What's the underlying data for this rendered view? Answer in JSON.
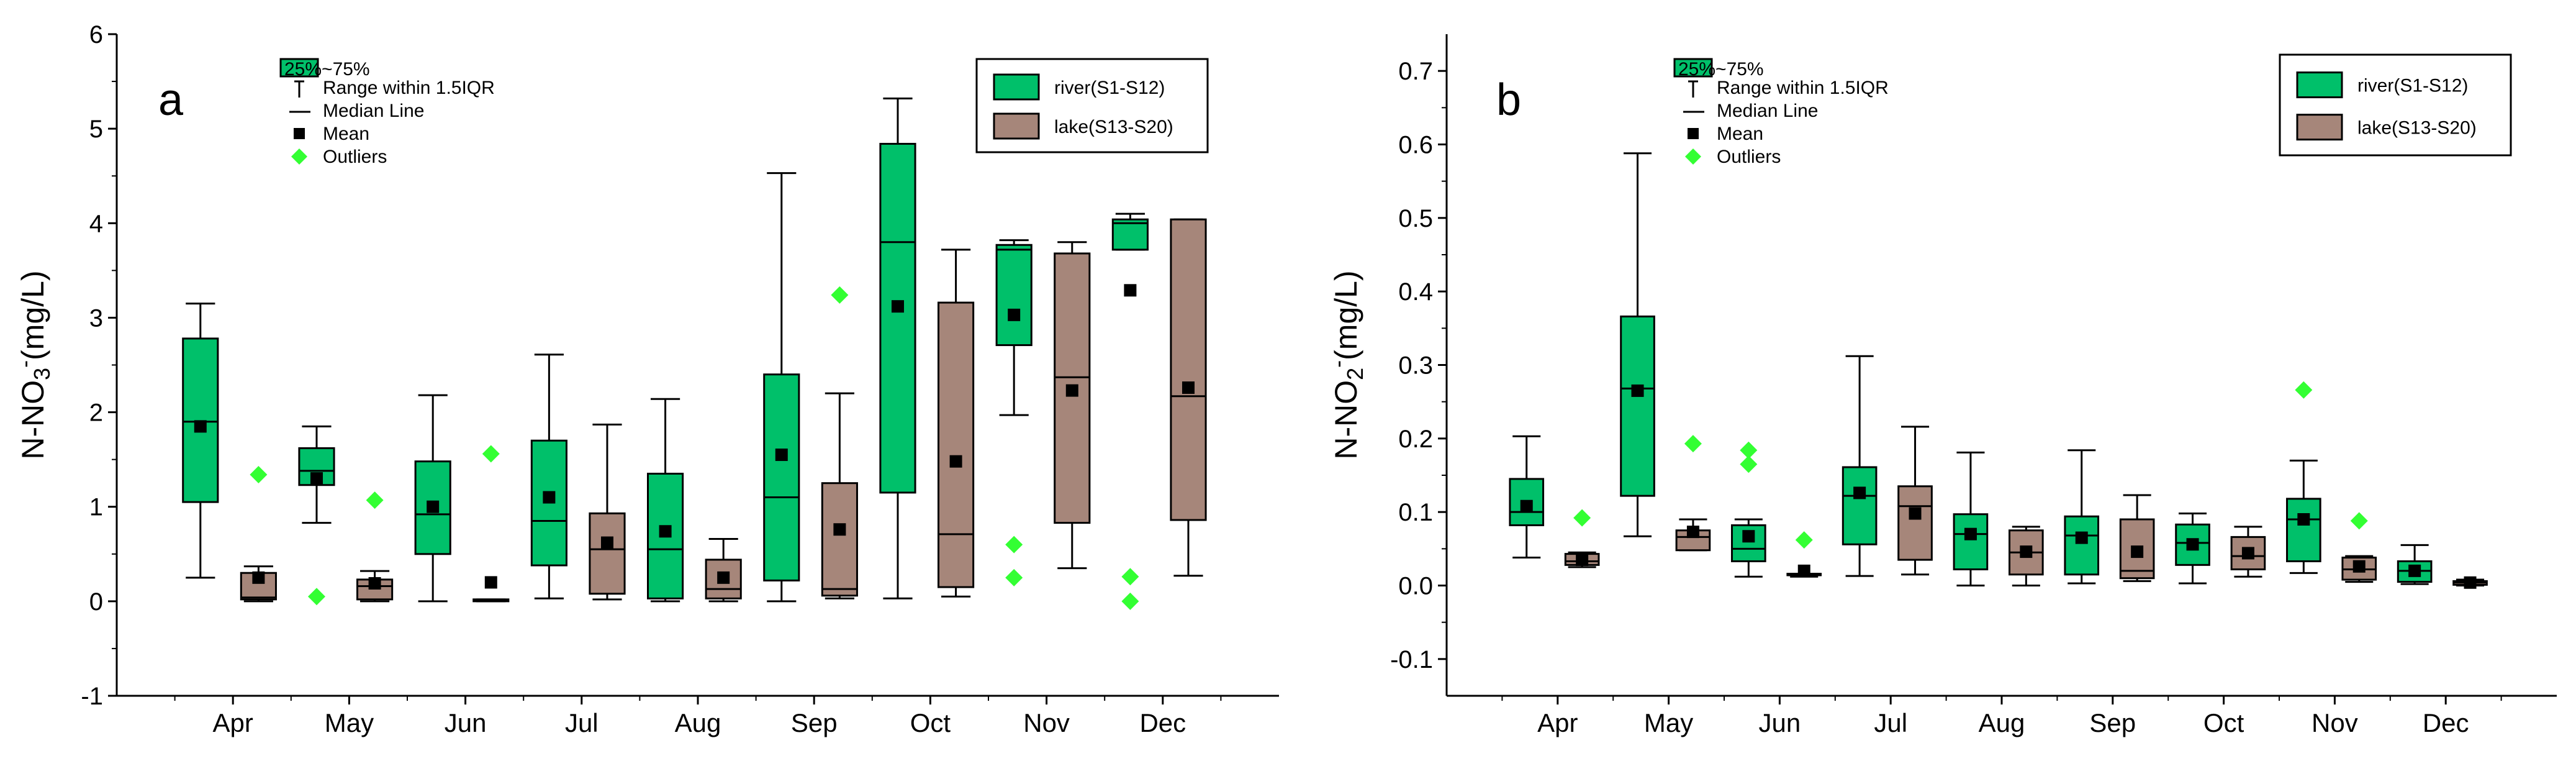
{
  "colors": {
    "river": "#00c06a",
    "lake": "#a6867a",
    "outlier": "#33ff33",
    "mean": "#000000"
  },
  "stats_legend": {
    "box": "25%~75%",
    "range": "Range within 1.5IQR",
    "median": "Median Line",
    "mean": "Mean",
    "outliers": "Outliers"
  },
  "series_legend": {
    "river": "river(S1-S12)",
    "lake": "lake(S13-S20)"
  },
  "chart_data": [
    {
      "type": "box",
      "panel_label": "a",
      "ylabel_prefix": "N-NO",
      "ylabel_sub": "3",
      "ylabel_sup": "-",
      "ylabel_suffix": "(mg/L)",
      "ylim": [
        -1,
        6
      ],
      "yticks": [
        -1,
        0,
        1,
        2,
        3,
        4,
        5,
        6
      ],
      "months": [
        "Apr",
        "May",
        "Jun",
        "Jul",
        "Aug",
        "Sep",
        "Oct",
        "Nov",
        "Dec"
      ],
      "boxes": [
        {
          "series": "river",
          "month": "Apr",
          "pos": 0.72,
          "whisker_low": 0.25,
          "q1": 1.05,
          "median": 1.9,
          "q3": 2.78,
          "whisker_high": 3.15,
          "mean": 1.85,
          "outliers": []
        },
        {
          "series": "lake",
          "month": "Apr",
          "pos": 1.22,
          "whisker_low": 0.0,
          "q1": 0.02,
          "median": 0.04,
          "q3": 0.3,
          "whisker_high": 0.37,
          "mean": 0.25,
          "outliers": [
            1.34
          ]
        },
        {
          "series": "river",
          "month": "May",
          "pos": 1.72,
          "whisker_low": 0.83,
          "q1": 1.23,
          "median": 1.38,
          "q3": 1.62,
          "whisker_high": 1.85,
          "mean": 1.3,
          "outliers": [
            0.05
          ]
        },
        {
          "series": "lake",
          "month": "May",
          "pos": 2.22,
          "whisker_low": 0.0,
          "q1": 0.02,
          "median": 0.16,
          "q3": 0.23,
          "whisker_high": 0.32,
          "mean": 0.19,
          "outliers": [
            1.07
          ]
        },
        {
          "series": "river",
          "month": "Jun",
          "pos": 2.72,
          "whisker_low": 0.0,
          "q1": 0.5,
          "median": 0.92,
          "q3": 1.48,
          "whisker_high": 2.18,
          "mean": 1.0,
          "outliers": []
        },
        {
          "series": "lake",
          "month": "Jun",
          "pos": 3.22,
          "whisker_low": 0.0,
          "q1": 0.0,
          "median": 0.01,
          "q3": 0.02,
          "whisker_high": 0.02,
          "mean": 0.2,
          "outliers": [
            1.56
          ]
        },
        {
          "series": "river",
          "month": "Jul",
          "pos": 3.72,
          "whisker_low": 0.03,
          "q1": 0.38,
          "median": 0.85,
          "q3": 1.7,
          "whisker_high": 2.61,
          "mean": 1.1,
          "outliers": []
        },
        {
          "series": "lake",
          "month": "Jul",
          "pos": 4.22,
          "whisker_low": 0.02,
          "q1": 0.08,
          "median": 0.55,
          "q3": 0.93,
          "whisker_high": 1.87,
          "mean": 0.62,
          "outliers": []
        },
        {
          "series": "river",
          "month": "Aug",
          "pos": 4.72,
          "whisker_low": 0.0,
          "q1": 0.03,
          "median": 0.55,
          "q3": 1.35,
          "whisker_high": 2.14,
          "mean": 0.74,
          "outliers": []
        },
        {
          "series": "lake",
          "month": "Aug",
          "pos": 5.22,
          "whisker_low": 0.0,
          "q1": 0.03,
          "median": 0.13,
          "q3": 0.44,
          "whisker_high": 0.66,
          "mean": 0.25,
          "outliers": []
        },
        {
          "series": "river",
          "month": "Sep",
          "pos": 5.72,
          "whisker_low": 0.0,
          "q1": 0.22,
          "median": 1.1,
          "q3": 2.4,
          "whisker_high": 4.53,
          "mean": 1.55,
          "outliers": []
        },
        {
          "series": "lake",
          "month": "Sep",
          "pos": 6.22,
          "whisker_low": 0.03,
          "q1": 0.06,
          "median": 0.13,
          "q3": 1.25,
          "whisker_high": 2.2,
          "mean": 0.76,
          "outliers": [
            3.24
          ]
        },
        {
          "series": "river",
          "month": "Oct",
          "pos": 6.72,
          "whisker_low": 0.03,
          "q1": 1.15,
          "median": 3.8,
          "q3": 4.84,
          "whisker_high": 5.32,
          "mean": 3.12,
          "outliers": []
        },
        {
          "series": "lake",
          "month": "Oct",
          "pos": 7.22,
          "whisker_low": 0.05,
          "q1": 0.15,
          "median": 0.71,
          "q3": 3.16,
          "whisker_high": 3.72,
          "mean": 1.48,
          "outliers": []
        },
        {
          "series": "river",
          "month": "Nov",
          "pos": 7.72,
          "whisker_low": 1.97,
          "q1": 2.71,
          "median": 3.72,
          "q3": 3.77,
          "whisker_high": 3.82,
          "mean": 3.03,
          "outliers": [
            0.6,
            0.25
          ]
        },
        {
          "series": "lake",
          "month": "Nov",
          "pos": 8.22,
          "whisker_low": 0.35,
          "q1": 0.83,
          "median": 2.37,
          "q3": 3.68,
          "whisker_high": 3.8,
          "mean": 2.23,
          "outliers": []
        },
        {
          "series": "river",
          "month": "Dec",
          "pos": 8.72,
          "whisker_low": 3.72,
          "q1": 3.72,
          "median": 4.0,
          "q3": 4.04,
          "whisker_high": 4.1,
          "mean": 3.29,
          "outliers": [
            0.26,
            0.0
          ]
        },
        {
          "series": "lake",
          "month": "Dec",
          "pos": 9.22,
          "whisker_low": 0.27,
          "q1": 0.86,
          "median": 2.17,
          "q3": 4.04,
          "whisker_high": 4.04,
          "mean": 2.26,
          "outliers": []
        }
      ]
    },
    {
      "type": "box",
      "panel_label": "b",
      "ylabel_prefix": "N-NO",
      "ylabel_sub": "2",
      "ylabel_sup": "-",
      "ylabel_suffix": "(mg/L)",
      "ylim": [
        -0.15,
        0.75
      ],
      "yticks": [
        -0.1,
        0.0,
        0.1,
        0.2,
        0.3,
        0.4,
        0.5,
        0.6,
        0.7
      ],
      "months": [
        "Apr",
        "May",
        "Jun",
        "Jul",
        "Aug",
        "Sep",
        "Oct",
        "Nov",
        "Dec"
      ],
      "boxes": [
        {
          "series": "river",
          "month": "Apr",
          "pos": 0.72,
          "whisker_low": 0.038,
          "q1": 0.082,
          "median": 0.1,
          "q3": 0.145,
          "whisker_high": 0.203,
          "mean": 0.108,
          "outliers": []
        },
        {
          "series": "lake",
          "month": "Apr",
          "pos": 1.22,
          "whisker_low": 0.025,
          "q1": 0.028,
          "median": 0.033,
          "q3": 0.043,
          "whisker_high": 0.045,
          "mean": 0.035,
          "outliers": [
            0.092
          ]
        },
        {
          "series": "river",
          "month": "May",
          "pos": 1.72,
          "whisker_low": 0.067,
          "q1": 0.122,
          "median": 0.268,
          "q3": 0.366,
          "whisker_high": 0.588,
          "mean": 0.265,
          "outliers": []
        },
        {
          "series": "lake",
          "month": "May",
          "pos": 2.22,
          "whisker_low": 0.048,
          "q1": 0.048,
          "median": 0.066,
          "q3": 0.075,
          "whisker_high": 0.09,
          "mean": 0.073,
          "outliers": [
            0.193
          ]
        },
        {
          "series": "river",
          "month": "Jun",
          "pos": 2.72,
          "whisker_low": 0.012,
          "q1": 0.033,
          "median": 0.05,
          "q3": 0.082,
          "whisker_high": 0.09,
          "mean": 0.067,
          "outliers": [
            0.184,
            0.165
          ]
        },
        {
          "series": "lake",
          "month": "Jun",
          "pos": 3.22,
          "whisker_low": 0.012,
          "q1": 0.014,
          "median": 0.014,
          "q3": 0.016,
          "whisker_high": 0.016,
          "mean": 0.02,
          "outliers": [
            0.062
          ]
        },
        {
          "series": "river",
          "month": "Jul",
          "pos": 3.72,
          "whisker_low": 0.013,
          "q1": 0.056,
          "median": 0.122,
          "q3": 0.161,
          "whisker_high": 0.312,
          "mean": 0.126,
          "outliers": []
        },
        {
          "series": "lake",
          "month": "Jul",
          "pos": 4.22,
          "whisker_low": 0.015,
          "q1": 0.035,
          "median": 0.108,
          "q3": 0.135,
          "whisker_high": 0.216,
          "mean": 0.098,
          "outliers": []
        },
        {
          "series": "river",
          "month": "Aug",
          "pos": 4.72,
          "whisker_low": 0.0,
          "q1": 0.022,
          "median": 0.07,
          "q3": 0.097,
          "whisker_high": 0.181,
          "mean": 0.07,
          "outliers": []
        },
        {
          "series": "lake",
          "month": "Aug",
          "pos": 5.22,
          "whisker_low": 0.0,
          "q1": 0.015,
          "median": 0.045,
          "q3": 0.075,
          "whisker_high": 0.08,
          "mean": 0.046,
          "outliers": []
        },
        {
          "series": "river",
          "month": "Sep",
          "pos": 5.72,
          "whisker_low": 0.003,
          "q1": 0.015,
          "median": 0.068,
          "q3": 0.094,
          "whisker_high": 0.184,
          "mean": 0.065,
          "outliers": []
        },
        {
          "series": "lake",
          "month": "Sep",
          "pos": 6.22,
          "whisker_low": 0.006,
          "q1": 0.01,
          "median": 0.02,
          "q3": 0.09,
          "whisker_high": 0.123,
          "mean": 0.046,
          "outliers": []
        },
        {
          "series": "river",
          "month": "Oct",
          "pos": 6.72,
          "whisker_low": 0.003,
          "q1": 0.028,
          "median": 0.058,
          "q3": 0.083,
          "whisker_high": 0.098,
          "mean": 0.056,
          "outliers": []
        },
        {
          "series": "lake",
          "month": "Oct",
          "pos": 7.22,
          "whisker_low": 0.012,
          "q1": 0.022,
          "median": 0.04,
          "q3": 0.066,
          "whisker_high": 0.08,
          "mean": 0.044,
          "outliers": []
        },
        {
          "series": "river",
          "month": "Nov",
          "pos": 7.72,
          "whisker_low": 0.017,
          "q1": 0.033,
          "median": 0.09,
          "q3": 0.118,
          "whisker_high": 0.17,
          "mean": 0.09,
          "outliers": [
            0.266
          ]
        },
        {
          "series": "lake",
          "month": "Nov",
          "pos": 8.22,
          "whisker_low": 0.005,
          "q1": 0.008,
          "median": 0.022,
          "q3": 0.038,
          "whisker_high": 0.04,
          "mean": 0.026,
          "outliers": [
            0.088
          ]
        },
        {
          "series": "river",
          "month": "Dec",
          "pos": 8.72,
          "whisker_low": 0.002,
          "q1": 0.005,
          "median": 0.02,
          "q3": 0.033,
          "whisker_high": 0.055,
          "mean": 0.02,
          "outliers": []
        },
        {
          "series": "lake",
          "month": "Dec",
          "pos": 9.22,
          "whisker_low": 0.0,
          "q1": 0.001,
          "median": 0.004,
          "q3": 0.006,
          "whisker_high": 0.008,
          "mean": 0.004,
          "outliers": []
        }
      ]
    }
  ]
}
